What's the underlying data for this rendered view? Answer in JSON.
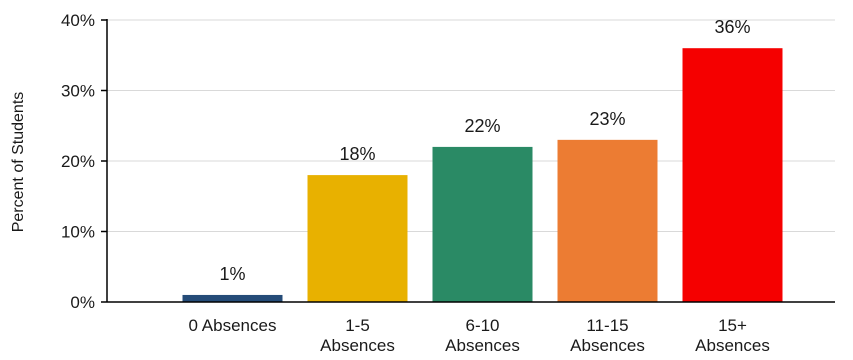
{
  "chart_data": {
    "type": "bar",
    "title": "",
    "xlabel": "",
    "ylabel": "Percent of Students",
    "ylim": [
      0,
      40
    ],
    "yticks": [
      0,
      10,
      20,
      30,
      40
    ],
    "ytick_labels": [
      "0%",
      "10%",
      "20%",
      "30%",
      "40%"
    ],
    "grid": true,
    "legend": "none",
    "categories": [
      [
        "0 Absences"
      ],
      [
        "1-5",
        "Absences"
      ],
      [
        "6-10",
        "Absences"
      ],
      [
        "11-15",
        "Absences"
      ],
      [
        "15+",
        "Absences"
      ]
    ],
    "values": [
      1,
      18,
      22,
      23,
      36
    ],
    "data_labels": [
      "1%",
      "18%",
      "22%",
      "23%",
      "36%"
    ],
    "colors": [
      "#254C78",
      "#E8B100",
      "#2A8A65",
      "#EC7C33",
      "#F50000"
    ]
  }
}
